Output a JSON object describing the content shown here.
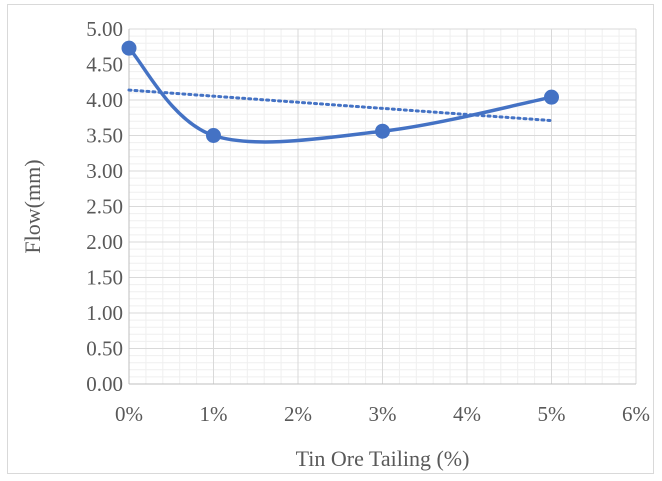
{
  "chart_data": {
    "type": "line",
    "title": "",
    "xlabel": "Tin Ore Tailing  (%)",
    "ylabel": "Flow(mm)",
    "x_ticks": [
      "0%",
      "1%",
      "2%",
      "3%",
      "4%",
      "5%",
      "6%"
    ],
    "y_ticks": [
      "0.00",
      "0.50",
      "1.00",
      "1.50",
      "2.00",
      "2.50",
      "3.00",
      "3.50",
      "4.00",
      "4.50",
      "5.00"
    ],
    "xlim": [
      0,
      6
    ],
    "ylim": [
      0,
      5
    ],
    "grid": true,
    "legend": "none",
    "series": [
      {
        "x": [
          0,
          1,
          3,
          5
        ],
        "y": [
          4.73,
          3.5,
          3.56,
          4.04
        ],
        "style": "smooth-line-with-markers",
        "color": "#4472c4"
      }
    ],
    "trendline": {
      "type": "linear",
      "style": "dotted",
      "x": [
        0,
        5
      ],
      "y": [
        4.14,
        3.71
      ],
      "color": "#4472c4"
    }
  }
}
